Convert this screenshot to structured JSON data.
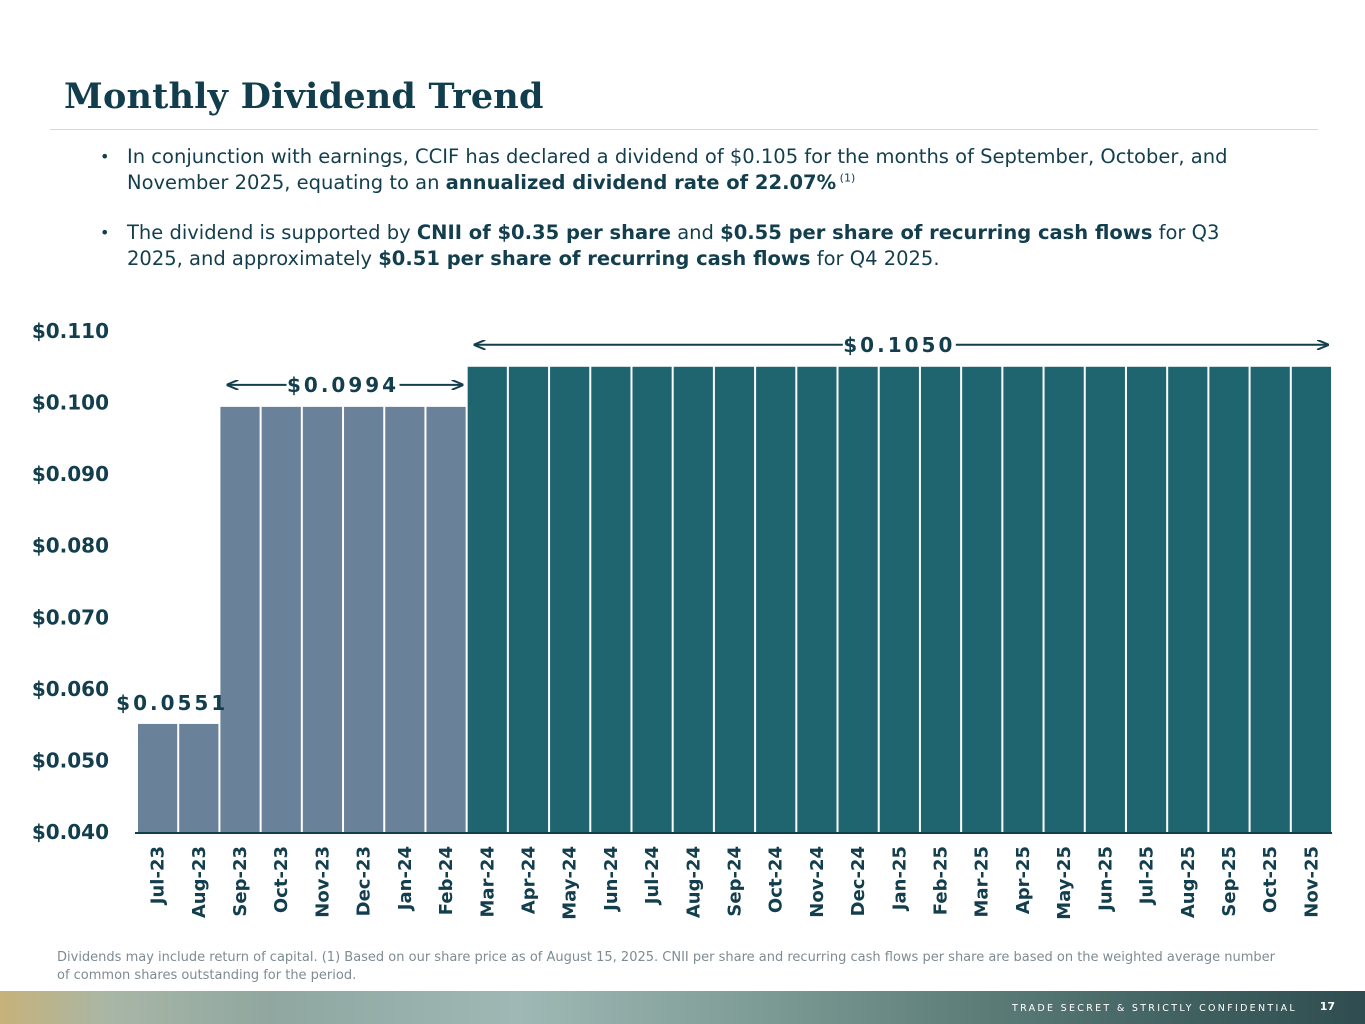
{
  "page": {
    "title": "Monthly Dividend Trend",
    "bullets": [
      {
        "segments": [
          {
            "text": "In conjunction with earnings, CCIF has declared a dividend of $0.105 for the months of September, October, and November 2025, equating to an ",
            "bold": false
          },
          {
            "text": "annualized dividend rate of 22.07%",
            "bold": true
          },
          {
            "text": " (1)",
            "sup": true
          }
        ]
      },
      {
        "segments": [
          {
            "text": "The dividend is supported by ",
            "bold": false
          },
          {
            "text": "CNII of $0.35 per share",
            "bold": true
          },
          {
            "text": " and  ",
            "bold": false
          },
          {
            "text": "$0.55 per share of recurring cash flows",
            "bold": true
          },
          {
            "text": " for Q3 2025, and approximately ",
            "bold": false
          },
          {
            "text": "$0.51 per share of recurring cash flows",
            "bold": true
          },
          {
            "text": " for Q4 2025.",
            "bold": false
          }
        ]
      }
    ],
    "footnote": "Dividends may include return of capital. (1) Based on our share price as of August 15, 2025. CNII per share and recurring cash flows per share are based on the weighted average number of common shares outstanding for the period.",
    "footer": "TRADE SECRET & STRICTLY CONFIDENTIAL",
    "page_number": "17"
  },
  "colors": {
    "bar_grey": "#6a8299",
    "bar_teal": "#1e6570",
    "text": "#133e4d"
  },
  "chart_data": {
    "type": "bar",
    "title": "",
    "xlabel": "",
    "ylabel": "",
    "ylim": [
      0.04,
      0.11
    ],
    "y_ticks": [
      "$0.040",
      "$0.050",
      "$0.060",
      "$0.070",
      "$0.080",
      "$0.090",
      "$0.100",
      "$0.110"
    ],
    "categories": [
      "Jul-23",
      "Aug-23",
      "Sep-23",
      "Oct-23",
      "Nov-23",
      "Dec-23",
      "Jan-24",
      "Feb-24",
      "Mar-24",
      "Apr-24",
      "May-24",
      "Jun-24",
      "Jul-24",
      "Aug-24",
      "Sep-24",
      "Oct-24",
      "Nov-24",
      "Dec-24",
      "Jan-25",
      "Feb-25",
      "Mar-25",
      "Apr-25",
      "May-25",
      "Jun-25",
      "Jul-25",
      "Aug-25",
      "Sep-25",
      "Oct-25",
      "Nov-25"
    ],
    "values": [
      0.0551,
      0.0551,
      0.0994,
      0.0994,
      0.0994,
      0.0994,
      0.0994,
      0.0994,
      0.105,
      0.105,
      0.105,
      0.105,
      0.105,
      0.105,
      0.105,
      0.105,
      0.105,
      0.105,
      0.105,
      0.105,
      0.105,
      0.105,
      0.105,
      0.105,
      0.105,
      0.105,
      0.105,
      0.105,
      0.105
    ],
    "annotations": [
      {
        "label": "$0.0551",
        "from_index": 0,
        "to_index": 1,
        "arrows": false
      },
      {
        "label": "$0.0994",
        "from_index": 2,
        "to_index": 7,
        "arrows": true
      },
      {
        "label": "$0.1050",
        "from_index": 8,
        "to_index": 28,
        "arrows": true
      }
    ],
    "grid": false,
    "legend": "none"
  }
}
